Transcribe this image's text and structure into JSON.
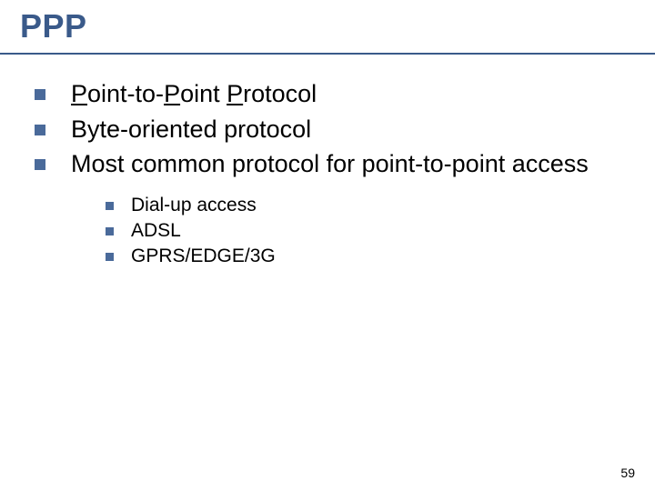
{
  "title": {
    "text": "PPP",
    "color": "#3a5a8a",
    "fontsize": 36
  },
  "rule_color": "#3a5a8a",
  "bullet_color": "#4a6a9a",
  "background_color": "#ffffff",
  "body_fontsize": 27,
  "sub_fontsize": 21,
  "items": [
    {
      "segments": [
        {
          "text": "P",
          "underline": true
        },
        {
          "text": "oint-to-"
        },
        {
          "text": "P",
          "underline": true
        },
        {
          "text": "oint "
        },
        {
          "text": "P",
          "underline": true
        },
        {
          "text": "rotocol"
        }
      ]
    },
    {
      "text": "Byte-oriented protocol"
    },
    {
      "text": "Most common protocol for point-to-point access"
    }
  ],
  "subitems": [
    {
      "text": "Dial-up access"
    },
    {
      "text": "ADSL"
    },
    {
      "text": "GPRS/EDGE/3G"
    }
  ],
  "page_number": "59"
}
